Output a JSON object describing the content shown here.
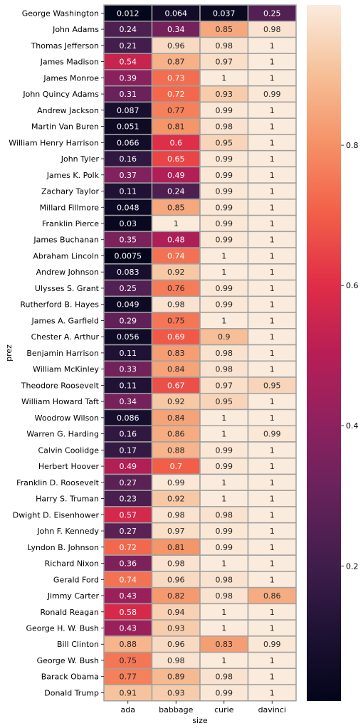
{
  "chart_data": {
    "type": "heatmap",
    "xlabel": "size",
    "ylabel": "prez",
    "columns": [
      "ada",
      "babbage",
      "curie",
      "davinci"
    ],
    "rows": [
      "George Washington",
      "John Adams",
      "Thomas Jefferson",
      "James Madison",
      "James Monroe",
      "John Quincy Adams",
      "Andrew Jackson",
      "Martin Van Buren",
      "William Henry Harrison",
      "John Tyler",
      "James K. Polk",
      "Zachary Taylor",
      "Millard Fillmore",
      "Franklin Pierce",
      "James Buchanan",
      "Abraham Lincoln",
      "Andrew Johnson",
      "Ulysses S. Grant",
      "Rutherford B. Hayes",
      "James A. Garfield",
      "Chester A. Arthur",
      "Benjamin Harrison",
      "William McKinley",
      "Theodore Roosevelt",
      "William Howard Taft",
      "Woodrow Wilson",
      "Warren G. Harding",
      "Calvin Coolidge",
      "Herbert Hoover",
      "Franklin D. Roosevelt",
      "Harry S. Truman",
      "Dwight D. Eisenhower",
      "John F. Kennedy",
      "Lyndon B. Johnson",
      "Richard Nixon",
      "Gerald Ford",
      "Jimmy Carter",
      "Ronald Reagan",
      "George H. W. Bush",
      "Bill Clinton",
      "George W. Bush",
      "Barack Obama",
      "Donald Trump"
    ],
    "values": [
      [
        0.012,
        0.064,
        0.037,
        0.25
      ],
      [
        0.24,
        0.34,
        0.85,
        0.98
      ],
      [
        0.21,
        0.96,
        0.98,
        1
      ],
      [
        0.54,
        0.87,
        0.97,
        1
      ],
      [
        0.39,
        0.73,
        1,
        1
      ],
      [
        0.31,
        0.72,
        0.93,
        0.99
      ],
      [
        0.087,
        0.77,
        0.99,
        1
      ],
      [
        0.051,
        0.81,
        0.98,
        1
      ],
      [
        0.066,
        0.6,
        0.95,
        1
      ],
      [
        0.16,
        0.65,
        0.99,
        1
      ],
      [
        0.37,
        0.49,
        0.99,
        1
      ],
      [
        0.11,
        0.24,
        0.99,
        1
      ],
      [
        0.048,
        0.85,
        0.99,
        1
      ],
      [
        0.03,
        1,
        0.99,
        1
      ],
      [
        0.35,
        0.48,
        0.99,
        1
      ],
      [
        0.0075,
        0.74,
        1,
        1
      ],
      [
        0.083,
        0.92,
        1,
        1
      ],
      [
        0.25,
        0.76,
        0.99,
        1
      ],
      [
        0.049,
        0.98,
        0.99,
        1
      ],
      [
        0.29,
        0.75,
        1,
        1
      ],
      [
        0.056,
        0.69,
        0.9,
        1
      ],
      [
        0.11,
        0.83,
        0.98,
        1
      ],
      [
        0.33,
        0.84,
        0.98,
        1
      ],
      [
        0.11,
        0.67,
        0.97,
        0.95
      ],
      [
        0.34,
        0.92,
        0.95,
        1
      ],
      [
        0.086,
        0.84,
        1,
        1
      ],
      [
        0.16,
        0.86,
        1,
        0.99
      ],
      [
        0.17,
        0.88,
        0.99,
        1
      ],
      [
        0.49,
        0.7,
        0.99,
        1
      ],
      [
        0.27,
        0.99,
        1,
        1
      ],
      [
        0.23,
        0.92,
        1,
        1
      ],
      [
        0.57,
        0.98,
        0.98,
        1
      ],
      [
        0.27,
        0.97,
        0.99,
        1
      ],
      [
        0.72,
        0.81,
        0.99,
        1
      ],
      [
        0.36,
        0.98,
        1,
        1
      ],
      [
        0.74,
        0.96,
        0.98,
        1
      ],
      [
        0.43,
        0.82,
        0.98,
        0.86
      ],
      [
        0.58,
        0.94,
        1,
        1
      ],
      [
        0.43,
        0.93,
        1,
        1
      ],
      [
        0.88,
        0.96,
        0.83,
        0.99
      ],
      [
        0.75,
        0.98,
        1,
        1
      ],
      [
        0.77,
        0.89,
        0.98,
        1
      ],
      [
        0.91,
        0.93,
        0.99,
        1
      ]
    ],
    "colormap": "rocket",
    "colorbar": {
      "range": [
        0.0075,
        1
      ],
      "ticks": [
        0.2,
        0.4,
        0.6,
        0.8
      ]
    },
    "cell_border_color": "#a0a0a0"
  }
}
